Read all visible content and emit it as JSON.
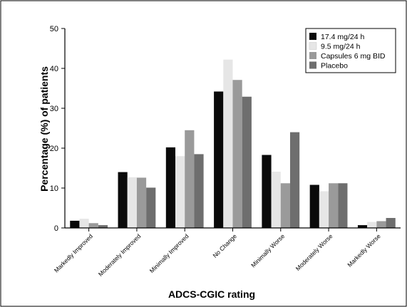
{
  "chart_data": {
    "type": "bar",
    "title": "",
    "xlabel": "ADCS-CGIC rating",
    "ylabel": "Percentage (%) of patients",
    "ylim": [
      0,
      50
    ],
    "yticks": [
      "0",
      "10",
      "20",
      "30",
      "40",
      "50"
    ],
    "grid": false,
    "legend_position": "top-right",
    "categories": [
      "Markedly Improved",
      "Moderately Improved",
      "Minimally Improved",
      "No Change",
      "Minimally Worse",
      "Moderately Worse",
      "Markedly Worse"
    ],
    "series": [
      {
        "name": "17.4 mg/24 h",
        "color": "#0a0a0a",
        "values": [
          1.8,
          14.0,
          20.2,
          34.2,
          18.3,
          10.8,
          0.7
        ]
      },
      {
        "name": "9.5 mg/24 h",
        "color": "#e6e6e6",
        "values": [
          2.3,
          12.7,
          18.0,
          42.2,
          14.1,
          9.2,
          1.5
        ]
      },
      {
        "name": "Capsules 6 mg BID",
        "color": "#9a9a9a",
        "values": [
          1.2,
          12.6,
          24.5,
          37.1,
          11.2,
          11.2,
          1.7
        ]
      },
      {
        "name": "Placebo",
        "color": "#6e6e6e",
        "values": [
          0.7,
          10.1,
          18.5,
          32.9,
          24.0,
          11.2,
          2.5
        ]
      }
    ]
  }
}
